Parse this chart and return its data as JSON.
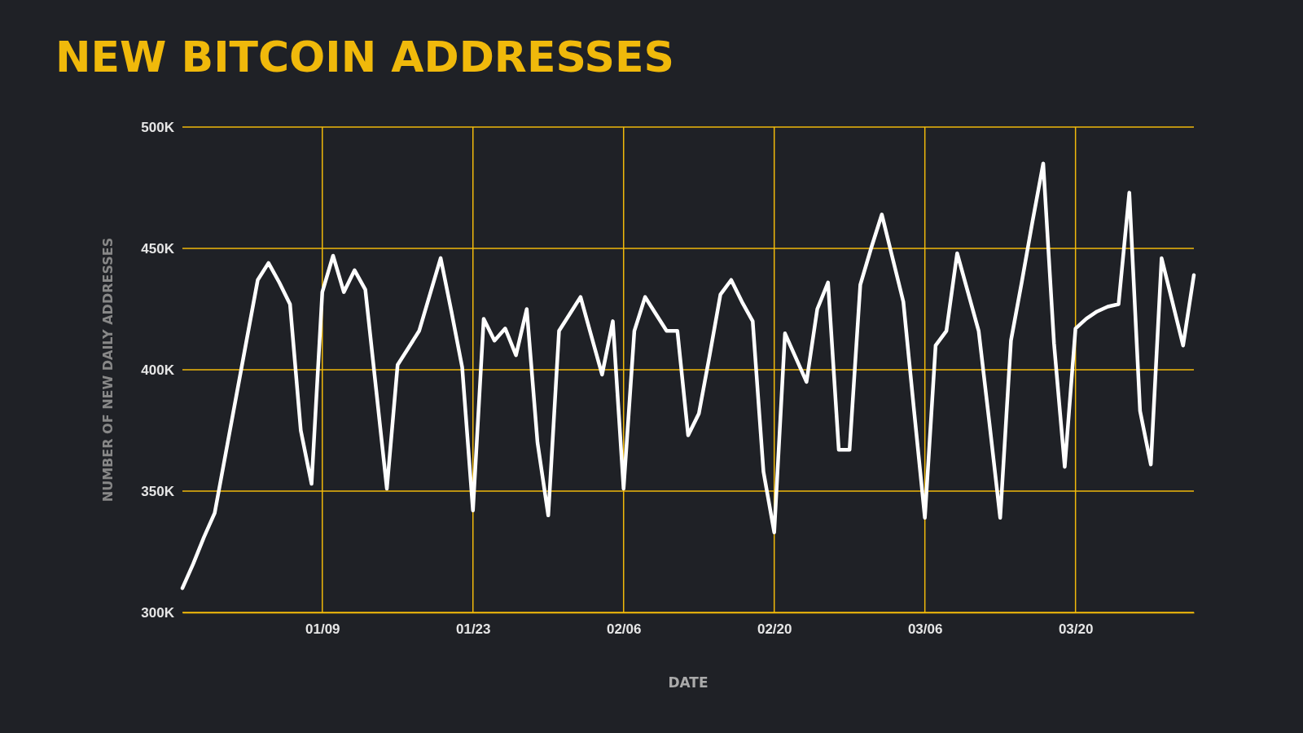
{
  "chart_data": {
    "type": "line",
    "title": "NEW BITCOIN ADDRESSES",
    "xlabel": "DATE",
    "ylabel": "NUMBER OF NEW DAILY ADDRESSES",
    "categories": [
      null,
      null,
      null,
      null,
      null,
      null,
      null,
      null,
      null,
      null,
      null,
      null,
      null,
      "01/09",
      null,
      null,
      null,
      null,
      null,
      null,
      null,
      null,
      null,
      null,
      null,
      null,
      null,
      "01/23",
      null,
      null,
      null,
      null,
      null,
      null,
      null,
      null,
      null,
      null,
      null,
      null,
      null,
      "02/06",
      null,
      null,
      null,
      null,
      null,
      null,
      null,
      null,
      null,
      null,
      null,
      null,
      null,
      "02/20",
      null,
      null,
      null,
      null,
      null,
      null,
      null,
      null,
      null,
      null,
      null,
      null,
      null,
      "03/06",
      null,
      null,
      null,
      null,
      null,
      null,
      null,
      null,
      null,
      null,
      null,
      null,
      null,
      "03/20",
      null,
      null,
      null,
      null,
      null,
      null,
      null,
      null,
      null,
      null,
      null
    ],
    "series": [
      {
        "color": "#ffffff",
        "values": [
          310,
          320,
          331,
          341,
          365,
          389,
          413,
          437,
          444,
          436,
          427,
          375,
          353,
          432,
          447,
          432,
          441,
          433,
          392,
          351,
          402,
          409,
          416,
          431,
          446,
          424,
          401,
          342,
          421,
          412,
          417,
          406,
          425,
          370,
          340,
          416,
          423,
          430,
          414,
          398,
          420,
          351,
          416,
          430,
          423,
          416,
          416,
          373,
          382,
          406,
          431,
          437,
          428,
          420,
          358,
          333,
          415,
          405,
          395,
          425,
          436,
          367,
          367,
          435,
          450,
          464,
          446,
          428,
          383,
          339,
          410,
          416,
          448,
          432,
          416,
          378,
          339,
          412,
          436,
          461,
          485,
          411,
          360,
          417,
          421,
          424,
          426,
          427,
          473,
          383,
          361,
          446,
          428,
          410,
          439
        ]
      }
    ],
    "ylim": [
      300,
      500
    ],
    "yticks": [
      {
        "value": 300,
        "label": "300K"
      },
      {
        "value": 350,
        "label": "350K"
      },
      {
        "value": 400,
        "label": "400K"
      },
      {
        "value": 450,
        "label": "450K"
      },
      {
        "value": 500,
        "label": "500K"
      }
    ],
    "grid": true,
    "marker": "none",
    "line_style": "solid"
  }
}
